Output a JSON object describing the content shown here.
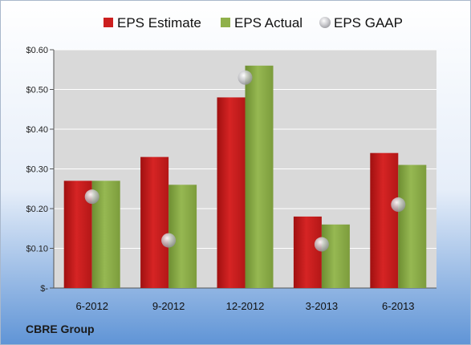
{
  "chart_data": {
    "type": "bar",
    "categories": [
      "6-2012",
      "9-2012",
      "12-2012",
      "3-2013",
      "6-2013"
    ],
    "series": [
      {
        "name": "EPS Estimate",
        "values": [
          0.27,
          0.33,
          0.48,
          0.18,
          0.34
        ],
        "color": "#cc1f1f"
      },
      {
        "name": "EPS Actual",
        "values": [
          0.27,
          0.26,
          0.56,
          0.16,
          0.31
        ],
        "color": "#8fb04a"
      }
    ],
    "scatter": {
      "name": "EPS GAAP",
      "values": [
        0.23,
        0.12,
        0.53,
        0.11,
        0.21
      ]
    },
    "yticks": [
      {
        "value": 0,
        "label": "$-"
      },
      {
        "value": 0.1,
        "label": "$0.10"
      },
      {
        "value": 0.2,
        "label": "$0.20"
      },
      {
        "value": 0.3,
        "label": "$0.30"
      },
      {
        "value": 0.4,
        "label": "$0.40"
      },
      {
        "value": 0.5,
        "label": "$0.50"
      },
      {
        "value": 0.6,
        "label": "$0.60"
      }
    ],
    "ylim": [
      0,
      0.6
    ],
    "grid": true,
    "legend_position": "top",
    "company": "CBRE Group"
  }
}
